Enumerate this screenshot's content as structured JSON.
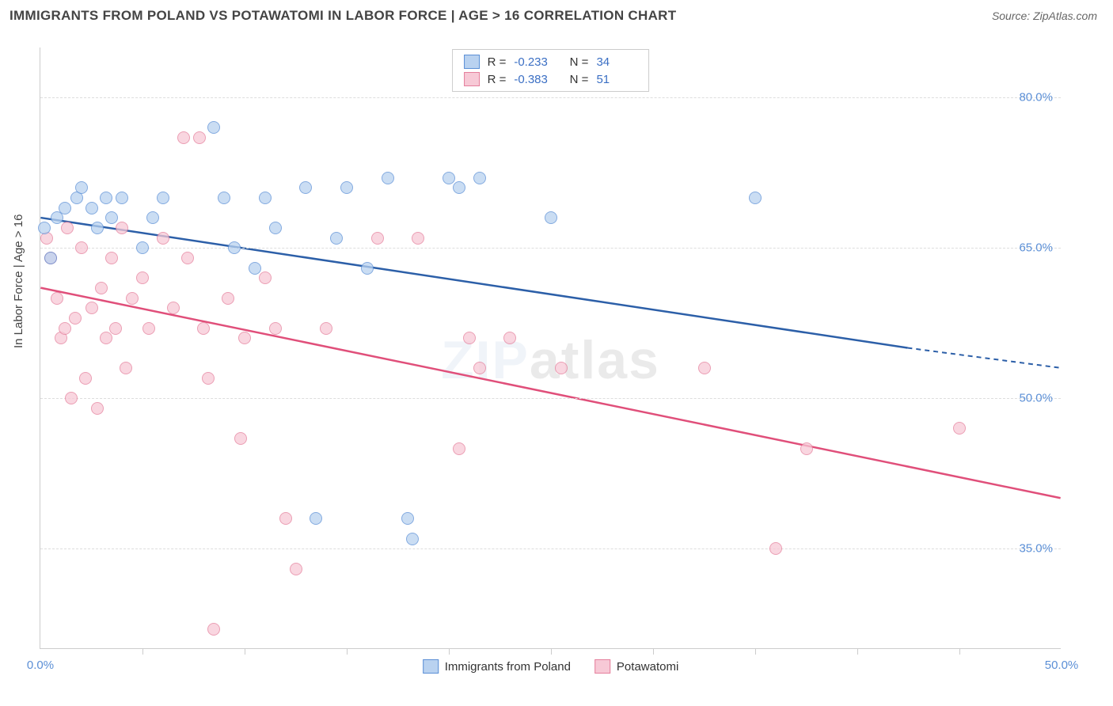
{
  "title": "IMMIGRANTS FROM POLAND VS POTAWATOMI IN LABOR FORCE | AGE > 16 CORRELATION CHART",
  "source": "Source: ZipAtlas.com",
  "y_axis_label": "In Labor Force | Age > 16",
  "watermark_a": "ZIP",
  "watermark_b": "atlas",
  "chart": {
    "type": "scatter",
    "xlim": [
      0,
      50
    ],
    "ylim": [
      25,
      85
    ],
    "x_ticks_major": [
      0,
      50
    ],
    "x_ticks_minor": [
      5,
      10,
      15,
      20,
      25,
      30,
      35,
      40,
      45
    ],
    "x_tick_labels": [
      "0.0%",
      "50.0%"
    ],
    "y_ticks": [
      35,
      50,
      65,
      80
    ],
    "y_tick_labels": [
      "35.0%",
      "50.0%",
      "65.0%",
      "80.0%"
    ],
    "background_color": "#ffffff",
    "grid_color": "#dddddd",
    "marker_radius": 8,
    "series": [
      {
        "name": "Immigrants from Poland",
        "color_fill": "#b9d2f0",
        "color_stroke": "#5b8fd6",
        "r": "-0.233",
        "n": "34",
        "regression": {
          "x1": 0,
          "y1": 68,
          "x2": 42.5,
          "y2": 55,
          "x2_ext": 50,
          "y2_ext": 53
        },
        "points": [
          {
            "x": 0.2,
            "y": 67
          },
          {
            "x": 0.8,
            "y": 68
          },
          {
            "x": 0.5,
            "y": 64
          },
          {
            "x": 1.2,
            "y": 69
          },
          {
            "x": 1.8,
            "y": 70
          },
          {
            "x": 2.5,
            "y": 69
          },
          {
            "x": 2.8,
            "y": 67
          },
          {
            "x": 2.0,
            "y": 71
          },
          {
            "x": 3.2,
            "y": 70
          },
          {
            "x": 3.5,
            "y": 68
          },
          {
            "x": 4.0,
            "y": 70
          },
          {
            "x": 5.5,
            "y": 68
          },
          {
            "x": 5.0,
            "y": 65
          },
          {
            "x": 6.0,
            "y": 70
          },
          {
            "x": 8.5,
            "y": 77
          },
          {
            "x": 9.0,
            "y": 70
          },
          {
            "x": 9.5,
            "y": 65
          },
          {
            "x": 10.5,
            "y": 63
          },
          {
            "x": 11.0,
            "y": 70
          },
          {
            "x": 11.5,
            "y": 67
          },
          {
            "x": 13.0,
            "y": 71
          },
          {
            "x": 13.5,
            "y": 38
          },
          {
            "x": 14.5,
            "y": 66
          },
          {
            "x": 15.0,
            "y": 71
          },
          {
            "x": 16.0,
            "y": 63
          },
          {
            "x": 17.0,
            "y": 72
          },
          {
            "x": 18.0,
            "y": 38
          },
          {
            "x": 18.2,
            "y": 36
          },
          {
            "x": 20.0,
            "y": 72
          },
          {
            "x": 20.5,
            "y": 71
          },
          {
            "x": 21.5,
            "y": 72
          },
          {
            "x": 25.0,
            "y": 68
          },
          {
            "x": 35.0,
            "y": 70
          }
        ]
      },
      {
        "name": "Potawatomi",
        "color_fill": "#f7c9d6",
        "color_stroke": "#e57f9c",
        "r": "-0.383",
        "n": "51",
        "regression": {
          "x1": 0,
          "y1": 61,
          "x2": 50,
          "y2": 40
        },
        "points": [
          {
            "x": 0.3,
            "y": 66
          },
          {
            "x": 0.5,
            "y": 64
          },
          {
            "x": 0.8,
            "y": 60
          },
          {
            "x": 1.0,
            "y": 56
          },
          {
            "x": 1.2,
            "y": 57
          },
          {
            "x": 1.5,
            "y": 50
          },
          {
            "x": 1.3,
            "y": 67
          },
          {
            "x": 1.7,
            "y": 58
          },
          {
            "x": 2.0,
            "y": 65
          },
          {
            "x": 2.2,
            "y": 52
          },
          {
            "x": 2.5,
            "y": 59
          },
          {
            "x": 2.8,
            "y": 49
          },
          {
            "x": 3.0,
            "y": 61
          },
          {
            "x": 3.2,
            "y": 56
          },
          {
            "x": 3.5,
            "y": 64
          },
          {
            "x": 3.7,
            "y": 57
          },
          {
            "x": 4.0,
            "y": 67
          },
          {
            "x": 4.2,
            "y": 53
          },
          {
            "x": 4.5,
            "y": 60
          },
          {
            "x": 5.0,
            "y": 62
          },
          {
            "x": 5.3,
            "y": 57
          },
          {
            "x": 6.0,
            "y": 66
          },
          {
            "x": 6.5,
            "y": 59
          },
          {
            "x": 7.0,
            "y": 76
          },
          {
            "x": 7.2,
            "y": 64
          },
          {
            "x": 7.8,
            "y": 76
          },
          {
            "x": 8.0,
            "y": 57
          },
          {
            "x": 8.2,
            "y": 52
          },
          {
            "x": 8.5,
            "y": 27
          },
          {
            "x": 9.2,
            "y": 60
          },
          {
            "x": 9.8,
            "y": 46
          },
          {
            "x": 10.0,
            "y": 56
          },
          {
            "x": 11.0,
            "y": 62
          },
          {
            "x": 11.5,
            "y": 57
          },
          {
            "x": 12.0,
            "y": 38
          },
          {
            "x": 12.5,
            "y": 33
          },
          {
            "x": 14.0,
            "y": 57
          },
          {
            "x": 16.5,
            "y": 66
          },
          {
            "x": 18.5,
            "y": 66
          },
          {
            "x": 20.5,
            "y": 45
          },
          {
            "x": 21.0,
            "y": 56
          },
          {
            "x": 21.5,
            "y": 53
          },
          {
            "x": 23.0,
            "y": 56
          },
          {
            "x": 25.5,
            "y": 53
          },
          {
            "x": 32.5,
            "y": 53
          },
          {
            "x": 36.0,
            "y": 35
          },
          {
            "x": 37.5,
            "y": 45
          },
          {
            "x": 45.0,
            "y": 47
          }
        ]
      }
    ],
    "legend_bottom": [
      {
        "label": "Immigrants from Poland",
        "fill": "#b9d2f0",
        "stroke": "#5b8fd6"
      },
      {
        "label": "Potawatomi",
        "fill": "#f7c9d6",
        "stroke": "#e57f9c"
      }
    ]
  }
}
